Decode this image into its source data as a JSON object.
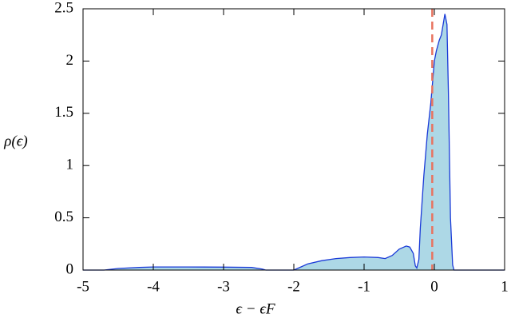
{
  "chart_data": {
    "type": "area",
    "xlabel": "ϵ − ϵF",
    "ylabel": "ρ(ϵ)",
    "x": [
      -5,
      -4.7,
      -4.5,
      -4.2,
      -4.0,
      -3.5,
      -3.0,
      -2.6,
      -2.45,
      -2.4,
      -2.0,
      -1.9,
      -1.8,
      -1.6,
      -1.4,
      -1.2,
      -1.0,
      -0.8,
      -0.7,
      -0.6,
      -0.5,
      -0.4,
      -0.35,
      -0.3,
      -0.27,
      -0.25,
      -0.22,
      -0.2,
      -0.15,
      -0.1,
      -0.05,
      0.0,
      0.03,
      0.07,
      0.1,
      0.15,
      0.18,
      0.2,
      0.23,
      0.26,
      0.28,
      1
    ],
    "series": [
      {
        "color": "#1a3ad8",
        "fill": "#add8e6",
        "values": [
          0,
          0,
          0.015,
          0.025,
          0.03,
          0.03,
          0.028,
          0.025,
          0.01,
          0,
          0,
          0.03,
          0.06,
          0.09,
          0.11,
          0.12,
          0.125,
          0.12,
          0.11,
          0.14,
          0.2,
          0.23,
          0.22,
          0.16,
          0.04,
          0.02,
          0.1,
          0.4,
          0.9,
          1.3,
          1.6,
          2.0,
          2.1,
          2.2,
          2.25,
          2.45,
          2.35,
          1.7,
          0.5,
          0.05,
          0,
          0
        ]
      }
    ],
    "vline": {
      "x": -0.03,
      "color": "#e8735f"
    },
    "xlim": [
      -5,
      1
    ],
    "xticks": [
      -5,
      -4,
      -3,
      -2,
      -1,
      0,
      1
    ],
    "ylim": [
      0,
      2.5
    ],
    "yticks": [
      0,
      0.5,
      1,
      1.5,
      2,
      2.5
    ]
  }
}
